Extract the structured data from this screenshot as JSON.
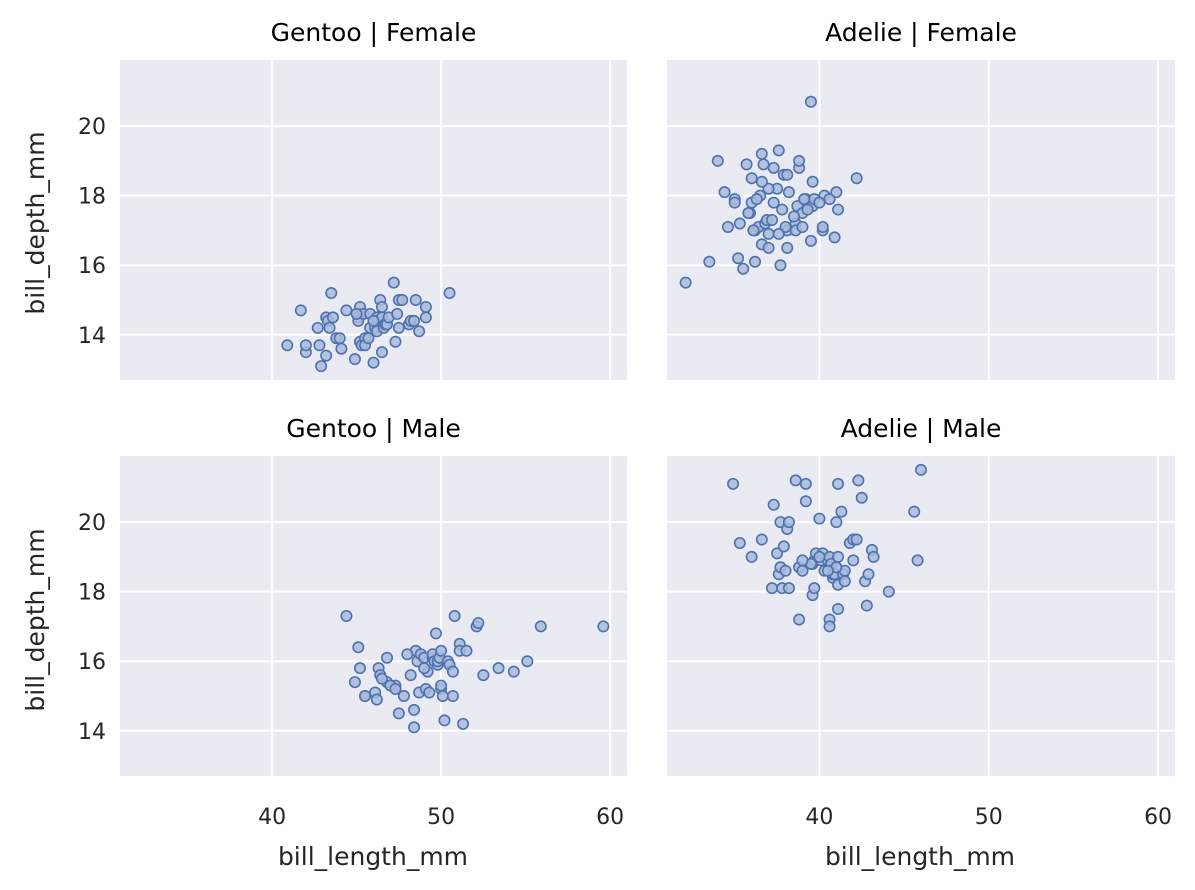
{
  "chart_data": {
    "type": "scatter",
    "layout": "facet grid, 2 rows x 2 columns, shared axes",
    "xlabel": "bill_length_mm",
    "ylabel": "bill_depth_mm",
    "xlim": [
      31,
      61
    ],
    "ylim": [
      12.7,
      21.9
    ],
    "xticks": [
      40,
      50,
      60
    ],
    "yticks": [
      14,
      16,
      18,
      20
    ],
    "grid": true,
    "marker": "hollow circle",
    "color": "#4c72b0",
    "panels": [
      {
        "title": "Gentoo | Female",
        "x": [
          40.9,
          41.7,
          42.0,
          42.7,
          42.8,
          42.9,
          43.2,
          43.2,
          43.3,
          43.4,
          43.5,
          43.6,
          43.8,
          44.1,
          44.4,
          44.9,
          45.1,
          45.1,
          45.2,
          45.2,
          45.3,
          45.4,
          45.5,
          45.5,
          45.7,
          45.8,
          45.8,
          46.0,
          46.1,
          46.2,
          46.2,
          46.4,
          46.5,
          46.5,
          46.5,
          46.6,
          46.7,
          46.8,
          46.9,
          47.2,
          47.3,
          47.4,
          47.5,
          47.5,
          47.7,
          48.1,
          48.2,
          48.4,
          48.5,
          48.7,
          49.1,
          49.1,
          50.5,
          42.0,
          44.0,
          45.0,
          46.0
        ],
        "y": [
          13.7,
          14.7,
          13.5,
          14.2,
          13.7,
          13.1,
          14.5,
          13.4,
          14.4,
          14.2,
          15.2,
          14.5,
          13.9,
          13.6,
          14.7,
          13.3,
          14.5,
          14.4,
          13.8,
          14.8,
          13.7,
          14.6,
          13.9,
          13.7,
          13.9,
          14.2,
          14.6,
          13.2,
          14.2,
          14.5,
          14.1,
          15.0,
          14.8,
          14.5,
          13.5,
          14.2,
          14.3,
          14.3,
          14.5,
          15.5,
          13.8,
          14.6,
          15.0,
          14.2,
          15.0,
          14.3,
          14.4,
          14.4,
          15.0,
          14.1,
          14.8,
          14.5,
          15.2,
          13.7,
          13.9,
          14.6,
          14.4
        ]
      },
      {
        "title": "Adelie | Female",
        "x": [
          32.1,
          33.5,
          34.0,
          34.4,
          34.6,
          35.0,
          35.2,
          35.5,
          35.7,
          35.9,
          36.0,
          36.0,
          36.2,
          36.2,
          36.4,
          36.5,
          36.6,
          36.6,
          36.7,
          36.8,
          36.9,
          37.0,
          37.0,
          37.3,
          37.3,
          37.5,
          37.6,
          37.7,
          37.8,
          37.9,
          38.1,
          38.1,
          38.1,
          38.2,
          38.6,
          38.6,
          38.7,
          38.8,
          38.8,
          39.0,
          39.0,
          39.2,
          39.5,
          39.5,
          39.5,
          39.6,
          39.6,
          39.7,
          40.2,
          40.2,
          40.3,
          40.6,
          40.9,
          41.1,
          42.2,
          35.3,
          36.1,
          36.3,
          37.0,
          38.0,
          35.0,
          36.6,
          37.2,
          38.5,
          39.3,
          39.1,
          40.0,
          41.0,
          35.8,
          37.6
        ],
        "y": [
          15.5,
          16.1,
          19.0,
          18.1,
          17.1,
          17.9,
          16.2,
          15.9,
          18.9,
          17.5,
          18.5,
          17.8,
          16.1,
          17.0,
          17.1,
          18.0,
          19.2,
          16.6,
          18.9,
          17.2,
          17.3,
          16.9,
          16.5,
          17.8,
          18.8,
          18.2,
          19.3,
          16.0,
          17.6,
          18.6,
          17.0,
          16.5,
          18.6,
          18.1,
          17.2,
          17.0,
          17.7,
          18.8,
          19.0,
          17.5,
          17.1,
          17.9,
          16.7,
          17.8,
          20.7,
          17.7,
          18.4,
          17.9,
          17.0,
          17.1,
          18.0,
          17.9,
          16.8,
          17.6,
          18.5,
          17.2,
          17.0,
          17.9,
          18.2,
          17.1,
          17.8,
          18.4,
          17.3,
          17.4,
          17.6,
          17.9,
          17.8,
          18.1,
          17.5,
          16.9
        ]
      },
      {
        "title": "Gentoo | Male",
        "x": [
          44.4,
          44.9,
          45.1,
          45.2,
          45.5,
          46.1,
          46.2,
          46.3,
          46.4,
          46.8,
          46.8,
          47.3,
          47.5,
          47.8,
          48.2,
          48.4,
          48.4,
          48.5,
          48.6,
          48.7,
          48.8,
          49.0,
          49.1,
          49.2,
          49.3,
          49.5,
          49.5,
          49.6,
          49.8,
          49.8,
          49.9,
          50.0,
          50.0,
          50.1,
          50.2,
          50.4,
          50.5,
          50.7,
          50.8,
          51.1,
          51.1,
          51.3,
          51.5,
          52.1,
          52.2,
          52.5,
          53.4,
          54.3,
          55.1,
          55.9,
          59.6,
          45.5,
          46.5,
          47.0,
          48.0,
          49.7,
          50.0,
          50.7,
          49.0,
          47.3
        ],
        "y": [
          17.3,
          15.4,
          16.4,
          15.8,
          15.0,
          15.1,
          14.9,
          15.8,
          15.6,
          15.4,
          16.1,
          15.3,
          14.5,
          15.0,
          15.6,
          14.6,
          14.1,
          16.3,
          16.0,
          15.1,
          16.2,
          16.1,
          15.2,
          15.7,
          15.1,
          16.1,
          16.2,
          16.0,
          15.9,
          16.0,
          16.1,
          15.2,
          15.3,
          15.0,
          14.3,
          16.0,
          15.9,
          15.0,
          17.3,
          16.5,
          16.3,
          14.2,
          16.3,
          17.0,
          17.1,
          15.6,
          15.8,
          15.7,
          16.0,
          17.0,
          17.0,
          15.0,
          15.5,
          15.3,
          16.2,
          16.8,
          16.3,
          15.7,
          15.8,
          15.2
        ]
      },
      {
        "title": "Adelie | Male",
        "x": [
          34.9,
          35.3,
          36.6,
          37.2,
          37.3,
          37.5,
          37.6,
          37.7,
          37.7,
          37.8,
          37.9,
          38.1,
          38.2,
          38.2,
          38.6,
          38.8,
          38.8,
          39.0,
          39.2,
          39.2,
          39.6,
          39.6,
          39.7,
          39.7,
          39.8,
          40.0,
          40.1,
          40.2,
          40.3,
          40.5,
          40.6,
          40.6,
          40.6,
          40.7,
          40.8,
          40.8,
          40.9,
          41.0,
          41.1,
          41.1,
          41.1,
          41.1,
          41.3,
          41.4,
          41.5,
          41.5,
          41.8,
          42.0,
          42.2,
          42.3,
          42.5,
          42.7,
          42.8,
          42.9,
          43.1,
          43.2,
          44.1,
          45.6,
          45.8,
          46.0,
          36.0,
          38.0,
          39.5,
          40.0,
          41.0,
          42.0,
          39.0,
          40.5
        ],
        "y": [
          21.1,
          19.4,
          19.5,
          18.1,
          20.5,
          19.1,
          18.5,
          20.0,
          18.7,
          18.1,
          19.3,
          19.8,
          18.1,
          20.0,
          21.2,
          17.2,
          18.7,
          18.6,
          21.1,
          20.6,
          18.8,
          17.9,
          18.9,
          18.1,
          19.1,
          20.1,
          18.9,
          19.1,
          18.6,
          18.9,
          17.2,
          17.0,
          19.0,
          18.8,
          18.4,
          18.5,
          18.5,
          20.0,
          18.2,
          17.5,
          19.0,
          21.1,
          20.3,
          18.5,
          18.3,
          18.6,
          19.4,
          19.5,
          19.5,
          21.2,
          20.7,
          18.3,
          17.6,
          18.5,
          19.2,
          19.0,
          18.0,
          20.3,
          18.9,
          21.5,
          19.0,
          18.6,
          18.8,
          19.0,
          18.7,
          18.9,
          18.9,
          18.6
        ]
      }
    ]
  }
}
